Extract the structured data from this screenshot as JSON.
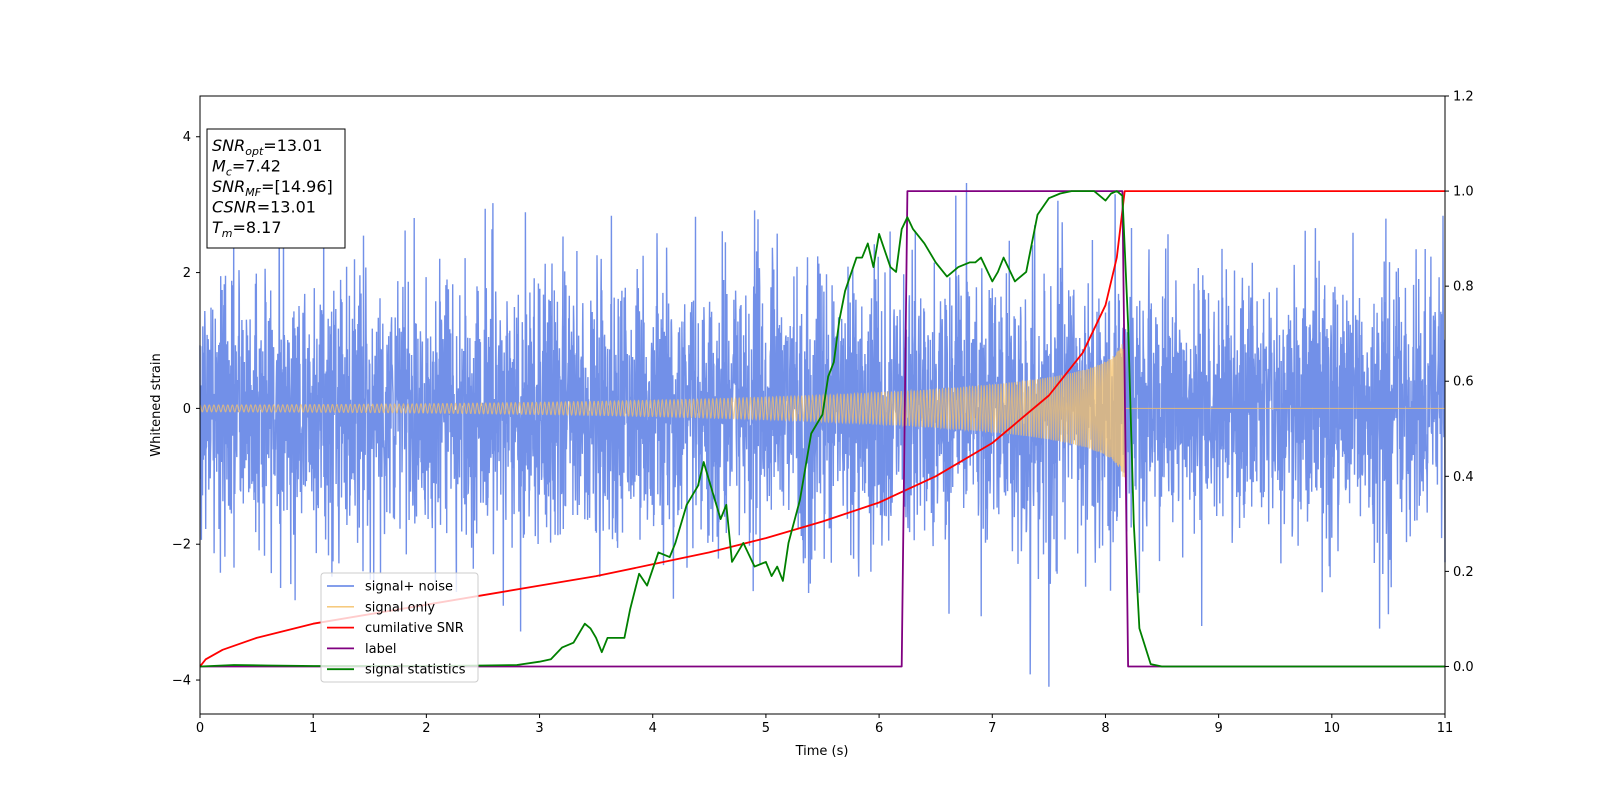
{
  "chart_data": {
    "type": "line",
    "xlabel": "Time (s)",
    "ylabel": "Whitened strain",
    "x_range": [
      0,
      11
    ],
    "y_left_range": [
      -4.5,
      4.6
    ],
    "y_right_range": [
      -0.1,
      1.2
    ],
    "x_ticks": [
      0,
      1,
      2,
      3,
      4,
      5,
      6,
      7,
      8,
      9,
      10,
      11
    ],
    "y_left_ticks": [
      -4,
      -2,
      0,
      2,
      4
    ],
    "y_right_ticks": [
      "0.0",
      "0.2",
      "0.4",
      "0.6",
      "0.8",
      "1.0",
      "1.2"
    ],
    "grid": false,
    "legend_placement": "lower-left",
    "annotation": {
      "lines": [
        {
          "sym": "SNR",
          "sub": "opt",
          "val": "=13.01"
        },
        {
          "sym": "M",
          "sub": "c",
          "val": "=7.42"
        },
        {
          "sym": "SNR",
          "sub": "MF",
          "val": "=[14.96]"
        },
        {
          "sym": "CSNR",
          "sub": "",
          "val": "=13.01"
        },
        {
          "sym": "T",
          "sub": "m",
          "val": "=8.17"
        }
      ]
    },
    "series": [
      {
        "name": "signal+ noise",
        "axis": "left",
        "color": "#7290e8",
        "note": "whitened noise, approx. gaussian, std ~1, peaks to ~4.2",
        "noise_std": 1.0,
        "x_range": [
          0,
          11
        ]
      },
      {
        "name": "signal only",
        "axis": "left",
        "color": "#f5c26b",
        "chirp_amplitude_start": 0.05,
        "chirp_amplitude_end": 1.0,
        "chirp_merger_time": 8.17,
        "x_range": [
          0,
          11
        ]
      },
      {
        "name": "cumilative SNR",
        "axis": "right",
        "color": "#ff0000",
        "x": [
          0.0,
          0.05,
          0.2,
          0.5,
          1.0,
          1.5,
          2.0,
          2.5,
          3.0,
          3.5,
          4.0,
          4.5,
          5.0,
          5.5,
          6.0,
          6.5,
          7.0,
          7.5,
          7.8,
          8.0,
          8.1,
          8.17,
          8.2,
          11.0
        ],
        "y": [
          0.0,
          0.015,
          0.035,
          0.06,
          0.09,
          0.11,
          0.13,
          0.15,
          0.17,
          0.19,
          0.215,
          0.24,
          0.27,
          0.305,
          0.345,
          0.4,
          0.47,
          0.57,
          0.66,
          0.76,
          0.86,
          1.0,
          1.0,
          1.0
        ]
      },
      {
        "name": "label",
        "axis": "right",
        "color": "#800080",
        "x": [
          0.0,
          6.2,
          6.25,
          8.15,
          8.2,
          11.0
        ],
        "y": [
          0.0,
          0.0,
          1.0,
          1.0,
          0.0,
          0.0
        ]
      },
      {
        "name": "signal statistics",
        "axis": "right",
        "color": "#008000",
        "x": [
          0.0,
          0.3,
          0.6,
          1.0,
          2.0,
          2.5,
          2.8,
          3.0,
          3.1,
          3.2,
          3.3,
          3.4,
          3.45,
          3.5,
          3.55,
          3.6,
          3.65,
          3.75,
          3.8,
          3.88,
          3.95,
          4.05,
          4.15,
          4.2,
          4.3,
          4.4,
          4.45,
          4.5,
          4.6,
          4.65,
          4.7,
          4.8,
          4.9,
          5.0,
          5.05,
          5.1,
          5.15,
          5.2,
          5.3,
          5.4,
          5.45,
          5.5,
          5.55,
          5.6,
          5.65,
          5.7,
          5.8,
          5.85,
          5.9,
          5.95,
          6.0,
          6.1,
          6.15,
          6.2,
          6.25,
          6.3,
          6.4,
          6.5,
          6.6,
          6.7,
          6.8,
          6.85,
          6.9,
          7.0,
          7.05,
          7.1,
          7.2,
          7.3,
          7.4,
          7.5,
          7.6,
          7.7,
          7.8,
          7.9,
          7.95,
          8.0,
          8.05,
          8.1,
          8.15,
          8.2,
          8.25,
          8.3,
          8.4,
          8.5,
          9.0,
          10.0,
          11.0
        ],
        "y": [
          0.0,
          0.003,
          0.002,
          0.001,
          0.001,
          0.002,
          0.003,
          0.01,
          0.015,
          0.04,
          0.05,
          0.09,
          0.08,
          0.06,
          0.03,
          0.06,
          0.06,
          0.06,
          0.12,
          0.195,
          0.17,
          0.24,
          0.23,
          0.26,
          0.34,
          0.38,
          0.43,
          0.39,
          0.31,
          0.34,
          0.22,
          0.26,
          0.21,
          0.22,
          0.19,
          0.21,
          0.18,
          0.26,
          0.35,
          0.49,
          0.51,
          0.53,
          0.61,
          0.64,
          0.73,
          0.79,
          0.86,
          0.86,
          0.89,
          0.84,
          0.91,
          0.84,
          0.83,
          0.92,
          0.945,
          0.92,
          0.89,
          0.85,
          0.82,
          0.84,
          0.85,
          0.85,
          0.86,
          0.81,
          0.83,
          0.86,
          0.81,
          0.83,
          0.95,
          0.985,
          0.995,
          1.0,
          1.0,
          1.0,
          0.99,
          0.98,
          0.995,
          1.0,
          0.99,
          0.72,
          0.3,
          0.08,
          0.005,
          0.0,
          0.0,
          0.0,
          0.0
        ]
      }
    ]
  }
}
